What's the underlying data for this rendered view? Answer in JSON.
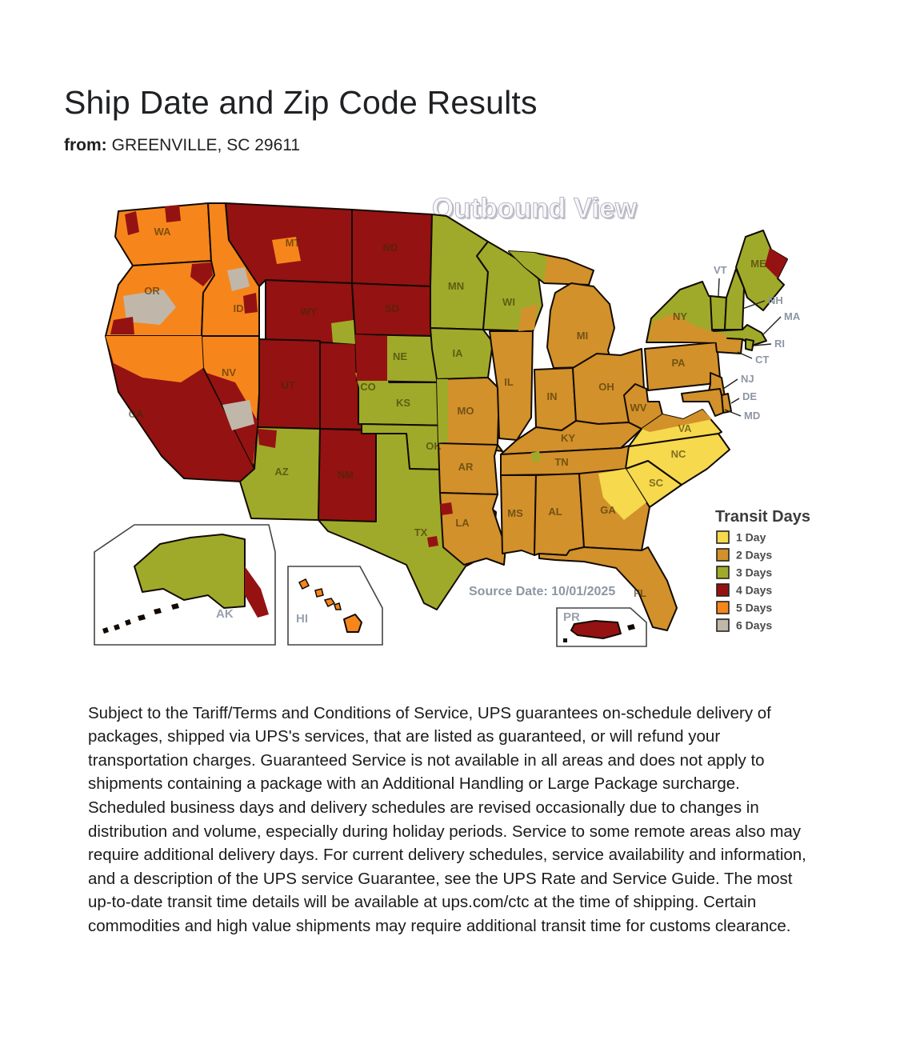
{
  "page": {
    "title": "Ship Date and Zip Code Results",
    "from_label": "from:",
    "from_value": "GREENVILLE, SC 29611"
  },
  "map": {
    "title": "Outbound View",
    "source_date": "Source Date: 10/01/2025",
    "legend": {
      "title": "Transit Days",
      "items": [
        {
          "label": "1 Day",
          "color": "#F6D94D"
        },
        {
          "label": "2 Days",
          "color": "#D2912B"
        },
        {
          "label": "3 Days",
          "color": "#A0AA2A"
        },
        {
          "label": "4 Days",
          "color": "#951212"
        },
        {
          "label": "5 Days",
          "color": "#F6861B"
        },
        {
          "label": "6 Days",
          "color": "#C0B7AA"
        }
      ]
    },
    "day_colors": {
      "1": "#F6D94D",
      "2": "#D2912B",
      "3": "#A0AA2A",
      "4": "#951212",
      "5": "#F6861B",
      "6": "#C0B7AA"
    },
    "states": [
      {
        "id": "WA",
        "days": 5
      },
      {
        "id": "OR",
        "days": 5
      },
      {
        "id": "CA",
        "days": 4
      },
      {
        "id": "NV",
        "days": 5
      },
      {
        "id": "ID",
        "days": 5
      },
      {
        "id": "MT",
        "days": 4
      },
      {
        "id": "WY",
        "days": 4
      },
      {
        "id": "UT",
        "days": 4
      },
      {
        "id": "CO",
        "days": 4
      },
      {
        "id": "AZ",
        "days": 3
      },
      {
        "id": "NM",
        "days": 4
      },
      {
        "id": "ND",
        "days": 4
      },
      {
        "id": "SD",
        "days": 4
      },
      {
        "id": "NE",
        "days": 3
      },
      {
        "id": "KS",
        "days": 3
      },
      {
        "id": "OK",
        "days": 3
      },
      {
        "id": "TX",
        "days": 3
      },
      {
        "id": "MN",
        "days": 3
      },
      {
        "id": "IA",
        "days": 3
      },
      {
        "id": "MO",
        "days": 2
      },
      {
        "id": "AR",
        "days": 2
      },
      {
        "id": "LA",
        "days": 2
      },
      {
        "id": "WI",
        "days": 3
      },
      {
        "id": "IL",
        "days": 2
      },
      {
        "id": "MS",
        "days": 2
      },
      {
        "id": "MIUP",
        "days": 2
      },
      {
        "id": "MI",
        "days": 2
      },
      {
        "id": "IN",
        "days": 2
      },
      {
        "id": "OH",
        "days": 2
      },
      {
        "id": "KY",
        "days": 2
      },
      {
        "id": "TN",
        "days": 2
      },
      {
        "id": "AL",
        "days": 2
      },
      {
        "id": "GA",
        "days": 2
      },
      {
        "id": "FL",
        "days": 2
      },
      {
        "id": "SC",
        "days": 1
      },
      {
        "id": "NC",
        "days": 1
      },
      {
        "id": "VA",
        "days": 1
      },
      {
        "id": "WV",
        "days": 2
      },
      {
        "id": "PA",
        "days": 2
      },
      {
        "id": "NY",
        "days": 3
      },
      {
        "id": "VT",
        "days": 3
      },
      {
        "id": "NH",
        "days": 3
      },
      {
        "id": "ME",
        "days": 3
      },
      {
        "id": "MA",
        "days": 3
      },
      {
        "id": "RI",
        "days": 3
      },
      {
        "id": "CT",
        "days": 2
      },
      {
        "id": "NJ",
        "days": 2
      },
      {
        "id": "DE",
        "days": 2
      },
      {
        "id": "MD",
        "days": 2
      },
      {
        "id": "AK",
        "days": 3
      },
      {
        "id": "HI",
        "days": 5
      },
      {
        "id": "PR",
        "days": 4
      }
    ],
    "patches": [
      {
        "id": "wa-nw",
        "days": 4
      },
      {
        "id": "wa-n",
        "days": 4
      },
      {
        "id": "or-c",
        "days": 6
      },
      {
        "id": "or-ne",
        "days": 4
      },
      {
        "id": "or-sw",
        "days": 4
      },
      {
        "id": "ca-n",
        "days": 5
      },
      {
        "id": "nv-w",
        "days": 4
      },
      {
        "id": "nv-s",
        "days": 6
      },
      {
        "id": "id-c",
        "days": 6
      },
      {
        "id": "id-e",
        "days": 4
      },
      {
        "id": "mt-w",
        "days": 5
      },
      {
        "id": "wy-se",
        "days": 3
      },
      {
        "id": "co-c",
        "days": 3
      },
      {
        "id": "az-nw",
        "days": 4
      },
      {
        "id": "ne-w",
        "days": 4
      },
      {
        "id": "mo-w",
        "days": 3
      },
      {
        "id": "wi-se",
        "days": 2
      },
      {
        "id": "miup-w",
        "days": 3
      },
      {
        "id": "ny-s",
        "days": 2
      },
      {
        "id": "va-n",
        "days": 2
      },
      {
        "id": "ga-n",
        "days": 1
      },
      {
        "id": "me-ne",
        "days": 4
      },
      {
        "id": "tx-1",
        "days": 4
      },
      {
        "id": "tx-2",
        "days": 4
      },
      {
        "id": "tn-c",
        "days": 3
      },
      {
        "id": "ak-se",
        "days": 4
      }
    ],
    "inset_labels": [
      {
        "id": "AK",
        "label": "AK"
      },
      {
        "id": "HI",
        "label": "HI"
      },
      {
        "id": "PR",
        "label": "PR"
      }
    ],
    "callouts": [
      "VT",
      "NH",
      "MA",
      "RI",
      "CT",
      "NJ",
      "DE",
      "MD"
    ]
  },
  "disclaimer": "Subject to the Tariff/Terms and Conditions of Service, UPS guarantees on-schedule delivery of packages, shipped via UPS's services, that are listed as guaranteed, or will refund your transportation charges. Guaranteed Service is not available in all areas and does not apply to shipments containing a package with an Additional Handling or Large Package surcharge. Scheduled business days and delivery schedules are revised occasionally due to changes in distribution and volume, especially during holiday periods. Service to some remote areas also may require additional delivery days. For current delivery schedules, service availability and information, and a description of the UPS service Guarantee, see the UPS Rate and Service Guide. The most up-to-date transit time details will be available at ups.com/ctc at the time of shipping. Certain commodities and high value shipments may require additional transit time for customs clearance."
}
